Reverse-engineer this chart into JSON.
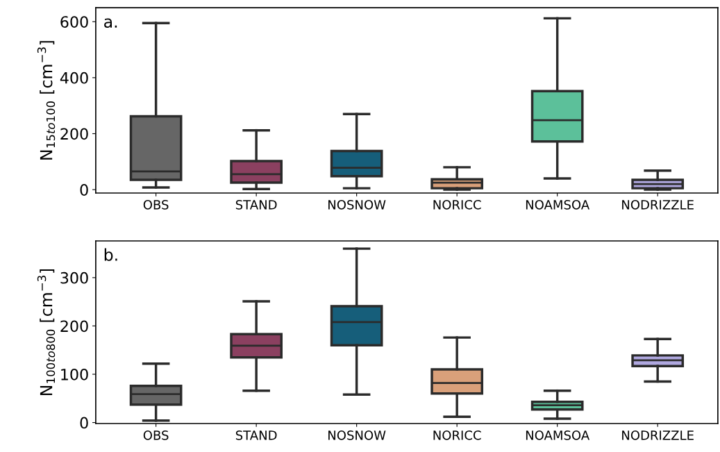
{
  "chart_data": [
    {
      "type": "box",
      "ylabel": "N$_{15to100}$ [cm$^{−3}$]",
      "annotations": [
        "a."
      ],
      "categories": [
        "OBS",
        "STAND",
        "NOSNOW",
        "NORICC",
        "NOAMSOA",
        "NODRIZZLE"
      ],
      "colors": [
        "#666666",
        "#8b4060",
        "#165e7a",
        "#d9a07a",
        "#5cc09a",
        "#b0a8e0"
      ],
      "boxes": [
        {
          "low": 8,
          "q1": 35,
          "median": 65,
          "q3": 262,
          "high": 595
        },
        {
          "low": 2,
          "q1": 25,
          "median": 55,
          "q3": 102,
          "high": 212
        },
        {
          "low": 5,
          "q1": 48,
          "median": 78,
          "q3": 138,
          "high": 270
        },
        {
          "low": 0,
          "q1": 5,
          "median": 25,
          "q3": 37,
          "high": 80
        },
        {
          "low": 40,
          "q1": 172,
          "median": 248,
          "q3": 352,
          "high": 612
        },
        {
          "low": 0,
          "q1": 5,
          "median": 20,
          "q3": 35,
          "high": 68
        }
      ],
      "ylim": [
        -12,
        650
      ],
      "yticks": [
        0,
        200,
        400,
        600
      ],
      "grid": false
    },
    {
      "type": "box",
      "ylabel": "N$_{100to800}$ [cm$^{−3}$]",
      "annotations": [
        "b."
      ],
      "categories": [
        "OBS",
        "STAND",
        "NOSNOW",
        "NORICC",
        "NOAMSOA",
        "NODRIZZLE"
      ],
      "colors": [
        "#666666",
        "#8b4060",
        "#165e7a",
        "#d9a07a",
        "#5cc09a",
        "#b0a8e0"
      ],
      "boxes": [
        {
          "low": 4,
          "q1": 37,
          "median": 59,
          "q3": 76,
          "high": 122
        },
        {
          "low": 66,
          "q1": 135,
          "median": 159,
          "q3": 183,
          "high": 251
        },
        {
          "low": 58,
          "q1": 160,
          "median": 208,
          "q3": 241,
          "high": 360
        },
        {
          "low": 12,
          "q1": 60,
          "median": 82,
          "q3": 110,
          "high": 176
        },
        {
          "low": 8,
          "q1": 27,
          "median": 36,
          "q3": 43,
          "high": 66
        },
        {
          "low": 85,
          "q1": 117,
          "median": 129,
          "q3": 139,
          "high": 173
        }
      ],
      "ylim": [
        -2,
        376
      ],
      "yticks": [
        0,
        100,
        200,
        300
      ],
      "grid": false
    }
  ]
}
